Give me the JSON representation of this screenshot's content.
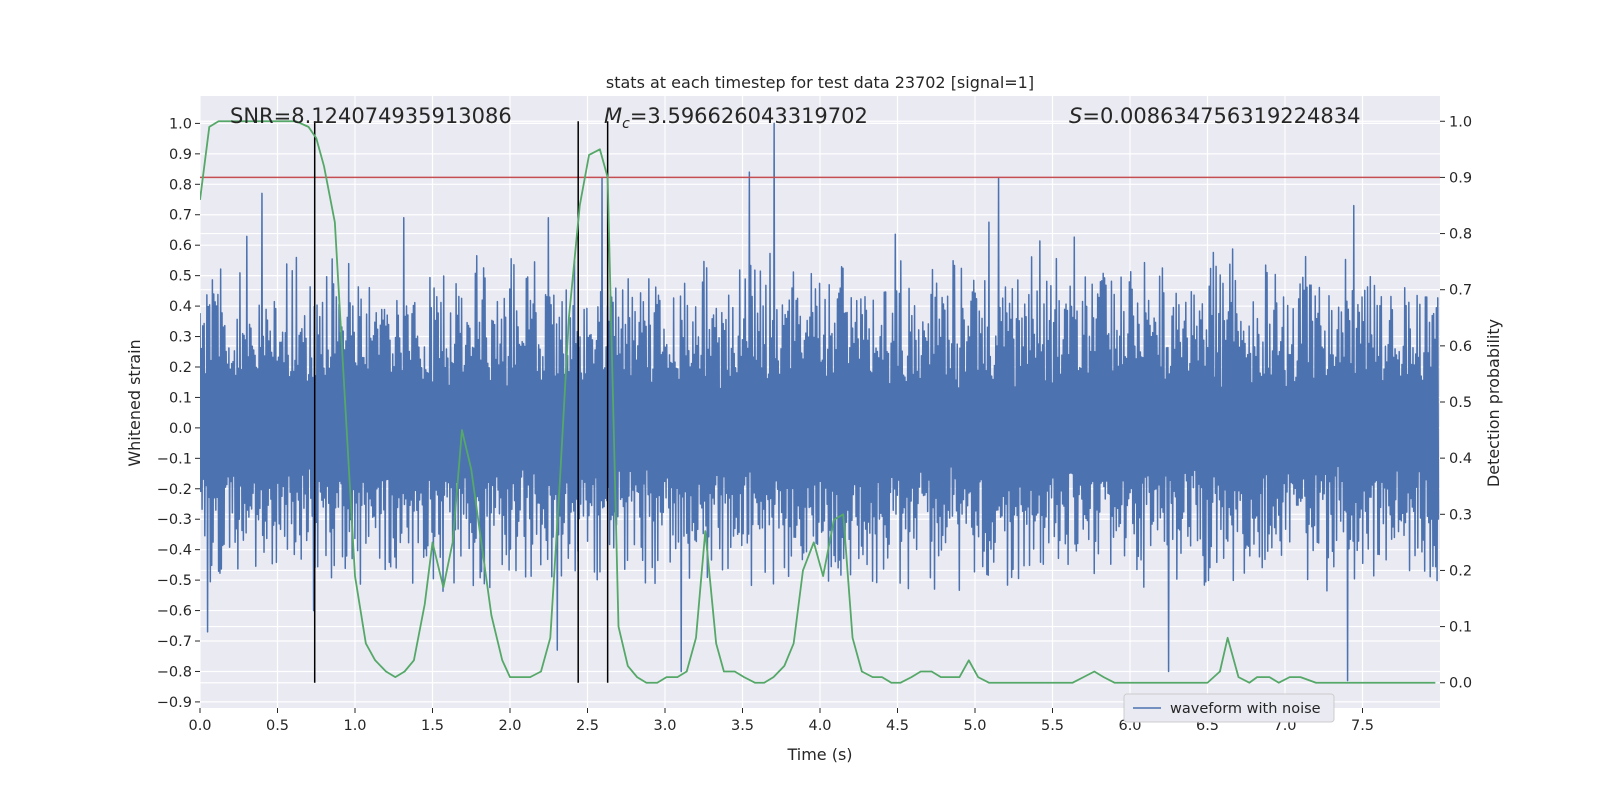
{
  "chart_data": {
    "type": "line",
    "title": "stats at each timestep for test data 23702 [signal=1]",
    "xlabel": "Time (s)",
    "ylabel": "Whitened strain",
    "y2label": "Detection probability",
    "xlim": [
      0.0,
      8.0
    ],
    "ylim": [
      -0.92,
      1.09
    ],
    "y2lim": [
      -0.045,
      1.045
    ],
    "x_ticks": [
      "0.0",
      "0.5",
      "1.0",
      "1.5",
      "2.0",
      "2.5",
      "3.0",
      "3.5",
      "4.0",
      "4.5",
      "5.0",
      "5.5",
      "6.0",
      "6.5",
      "7.0",
      "7.5"
    ],
    "y_ticks": [
      "1.0",
      "0.9",
      "0.8",
      "0.7",
      "0.6",
      "0.5",
      "0.4",
      "0.3",
      "0.2",
      "0.1",
      "0.0",
      "−0.1",
      "−0.2",
      "−0.3",
      "−0.4",
      "−0.5",
      "−0.6",
      "−0.7",
      "−0.8",
      "−0.9"
    ],
    "y2_ticks": [
      "1.0",
      "0.9",
      "0.8",
      "0.7",
      "0.6",
      "0.5",
      "0.4",
      "0.3",
      "0.2",
      "0.1",
      "0.0"
    ],
    "grid": true,
    "legend": {
      "placement": "lower-right",
      "entries": [
        "waveform with noise"
      ]
    },
    "annotations": {
      "snr": "SNR=8.124074935913086",
      "mc_symbol": "M",
      "mc_sub": "c",
      "mc_value": "=3.596626043319702",
      "s_symbol": "S",
      "s_value": "=0.008634756319224834"
    },
    "vertical_lines_x": [
      0.74,
      2.44,
      2.63
    ],
    "threshold_y2": 0.9,
    "waveform": {
      "name": "waveform with noise",
      "color": "#4c72b0",
      "sample_count": 1800,
      "x_range": [
        0.0,
        7.99
      ],
      "y_range": [
        -0.83,
        1.0
      ],
      "positive_envelope_typical": [
        0.35,
        0.6
      ],
      "negative_envelope_typical": [
        -0.35,
        -0.55
      ],
      "notable_peaks": [
        [
          0.4,
          0.77
        ],
        [
          1.32,
          0.69
        ],
        [
          2.6,
          0.82
        ],
        [
          3.55,
          0.84
        ],
        [
          3.71,
          1.0
        ],
        [
          5.15,
          0.82
        ],
        [
          7.45,
          0.73
        ]
      ],
      "notable_troughs": [
        [
          0.05,
          -0.67
        ],
        [
          0.73,
          -0.6
        ],
        [
          2.3,
          -0.73
        ],
        [
          3.1,
          -0.8
        ],
        [
          6.25,
          -0.8
        ],
        [
          7.4,
          -0.83
        ]
      ]
    },
    "detection_probability": {
      "color": "#55a868",
      "x": [
        0.0,
        0.06,
        0.12,
        0.25,
        0.5,
        0.62,
        0.7,
        0.75,
        0.8,
        0.87,
        1.0,
        1.07,
        1.13,
        1.2,
        1.26,
        1.32,
        1.38,
        1.45,
        1.5,
        1.57,
        1.63,
        1.69,
        1.75,
        1.82,
        1.88,
        1.95,
        2.0,
        2.07,
        2.13,
        2.2,
        2.26,
        2.32,
        2.38,
        2.45,
        2.51,
        2.58,
        2.63,
        2.7,
        2.76,
        2.82,
        2.88,
        2.95,
        3.01,
        3.08,
        3.14,
        3.2,
        3.26,
        3.33,
        3.38,
        3.45,
        3.51,
        3.58,
        3.64,
        3.7,
        3.77,
        3.83,
        3.89,
        3.96,
        4.02,
        4.09,
        4.15,
        4.21,
        4.27,
        4.34,
        4.4,
        4.46,
        4.52,
        4.59,
        4.65,
        4.72,
        4.78,
        4.84,
        4.9,
        4.96,
        5.02,
        5.09,
        5.15,
        5.21,
        5.27,
        5.35,
        5.5,
        5.63,
        5.7,
        5.77,
        5.83,
        5.9,
        5.96,
        6.02,
        6.08,
        6.15,
        6.21,
        6.3,
        6.4,
        6.5,
        6.58,
        6.63,
        6.7,
        6.77,
        6.82,
        6.9,
        6.96,
        7.03,
        7.1,
        7.2,
        7.3,
        7.5,
        7.6,
        7.8,
        7.97
      ],
      "values": [
        0.86,
        0.99,
        1.0,
        1.0,
        1.0,
        1.0,
        0.99,
        0.97,
        0.92,
        0.82,
        0.19,
        0.07,
        0.04,
        0.02,
        0.01,
        0.02,
        0.04,
        0.14,
        0.25,
        0.17,
        0.25,
        0.45,
        0.38,
        0.24,
        0.12,
        0.04,
        0.01,
        0.01,
        0.01,
        0.02,
        0.08,
        0.35,
        0.65,
        0.85,
        0.94,
        0.95,
        0.9,
        0.1,
        0.03,
        0.01,
        0.0,
        0.0,
        0.01,
        0.01,
        0.02,
        0.08,
        0.27,
        0.07,
        0.02,
        0.02,
        0.01,
        0.0,
        0.0,
        0.01,
        0.03,
        0.07,
        0.2,
        0.25,
        0.19,
        0.29,
        0.3,
        0.08,
        0.02,
        0.01,
        0.01,
        0.0,
        0.0,
        0.01,
        0.02,
        0.02,
        0.01,
        0.01,
        0.01,
        0.04,
        0.01,
        0.0,
        0.0,
        0.0,
        0.0,
        0.0,
        0.0,
        0.0,
        0.01,
        0.02,
        0.01,
        0.0,
        0.0,
        0.0,
        0.0,
        0.0,
        0.0,
        0.0,
        0.0,
        0.0,
        0.02,
        0.08,
        0.01,
        0.0,
        0.01,
        0.01,
        0.0,
        0.01,
        0.01,
        0.0,
        0.0,
        0.0,
        0.0,
        0.0,
        0.0
      ]
    }
  }
}
